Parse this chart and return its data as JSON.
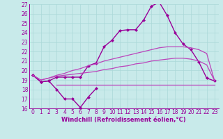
{
  "x_values": [
    0,
    1,
    2,
    3,
    4,
    5,
    6,
    7,
    8,
    9,
    10,
    11,
    12,
    13,
    14,
    15,
    16,
    17,
    18,
    19,
    20,
    21,
    22,
    23
  ],
  "line_main": [
    19.5,
    18.8,
    18.9,
    19.3,
    19.3,
    19.3,
    19.3,
    20.5,
    20.8,
    22.5,
    23.2,
    24.2,
    24.3,
    24.3,
    25.3,
    26.8,
    27.2,
    25.8,
    24.0,
    22.8,
    22.2,
    20.9,
    19.2,
    18.9
  ],
  "line_low": [
    19.5,
    18.8,
    18.9,
    18.0,
    17.0,
    17.0,
    16.1,
    17.2,
    18.1,
    null,
    null,
    null,
    null,
    null,
    null,
    null,
    null,
    null,
    null,
    null,
    null,
    null,
    null,
    null
  ],
  "line_upper": [
    19.5,
    19.0,
    19.2,
    19.5,
    19.7,
    20.0,
    20.2,
    20.5,
    20.7,
    21.0,
    21.2,
    21.4,
    21.6,
    21.8,
    22.0,
    22.2,
    22.4,
    22.5,
    22.5,
    22.5,
    22.4,
    22.2,
    21.8,
    18.9
  ],
  "line_lower": [
    19.5,
    19.0,
    19.2,
    19.4,
    19.5,
    19.6,
    19.7,
    19.8,
    19.9,
    20.1,
    20.2,
    20.4,
    20.5,
    20.7,
    20.8,
    21.0,
    21.1,
    21.2,
    21.3,
    21.3,
    21.2,
    21.0,
    20.6,
    18.9
  ],
  "line_flat": [
    null,
    null,
    null,
    18.5,
    18.5,
    18.5,
    18.5,
    18.5,
    18.5,
    18.5,
    18.5,
    18.5,
    18.5,
    18.5,
    18.5,
    18.5,
    18.5,
    18.5,
    18.5,
    18.5,
    18.5,
    18.5,
    18.5,
    18.5
  ],
  "bg_color": "#c8eaea",
  "line_color_dark": "#990099",
  "line_color_mid": "#bb44bb",
  "xlabel": "Windchill (Refroidissement éolien,°C)",
  "xlim": [
    -0.5,
    23.5
  ],
  "ylim": [
    16,
    27
  ],
  "yticks": [
    16,
    17,
    18,
    19,
    20,
    21,
    22,
    23,
    24,
    25,
    26,
    27
  ],
  "xticks": [
    0,
    1,
    2,
    3,
    4,
    5,
    6,
    7,
    8,
    9,
    10,
    11,
    12,
    13,
    14,
    15,
    16,
    17,
    18,
    19,
    20,
    21,
    22,
    23
  ],
  "grid_color": "#aad8d8",
  "font_color": "#990099",
  "tick_fontsize": 5.5,
  "xlabel_fontsize": 6.0
}
